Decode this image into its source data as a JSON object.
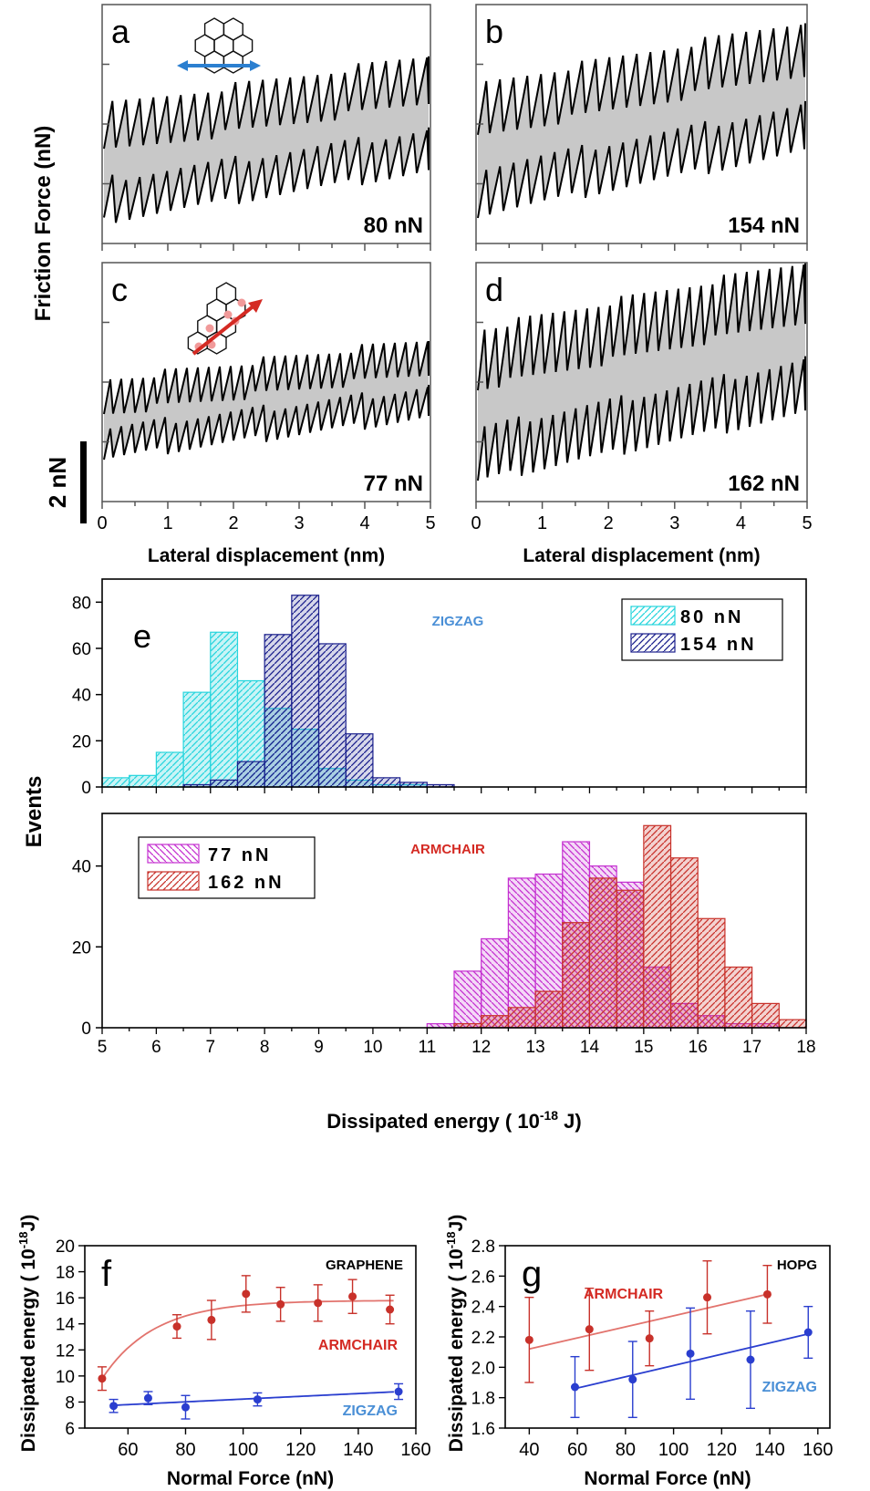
{
  "colors": {
    "black": "#000000",
    "trace_fill": "#c8c8c8",
    "cyan": "#27d5dd",
    "navy": "#1a1f8c",
    "magenta": "#c42fd0",
    "red": "#c8312a",
    "blue_fit": "#2a3ecf",
    "zigzag_text": "#4a8fd6",
    "armchair_text": "#d42a23"
  },
  "shared_labels": {
    "y_top": "Friction Force (nN)",
    "scale_bar": "2 nN",
    "x_lateral": "Lateral displacement (nm)",
    "events": "Events",
    "dissipated": "Dissipated energy ( 10",
    "dissipated_exp": "-18",
    "dissipated_unit": " J)",
    "normal_force": "Normal Force (nN)",
    "y_energy": "Dissipated energy ( 10",
    "y_energy_exp": "-18",
    "y_energy_unit": "J)"
  },
  "chart_data": [
    {
      "panel": "a",
      "type": "line",
      "load_label": "80 nN",
      "x_ticks": [],
      "xlim": [
        0,
        5
      ]
    },
    {
      "panel": "b",
      "type": "line",
      "load_label": "154 nN",
      "x_ticks": [],
      "xlim": [
        0,
        5
      ]
    },
    {
      "panel": "c",
      "type": "line",
      "load_label": "77 nN",
      "x_ticks": [
        "0",
        "1",
        "2",
        "3",
        "4",
        "5"
      ],
      "xlim": [
        0,
        5
      ],
      "xlabel": "Lateral displacement (nm)"
    },
    {
      "panel": "d",
      "type": "line",
      "load_label": "162 nN",
      "x_ticks": [
        "0",
        "1",
        "2",
        "3",
        "4",
        "5"
      ],
      "xlim": [
        0,
        5
      ],
      "xlabel": "Lateral displacement (nm)"
    },
    {
      "panel": "e",
      "type": "bar",
      "title_label": "ZIGZAG",
      "ylim": [
        0,
        90
      ],
      "y_ticks": [
        0,
        20,
        40,
        60,
        80
      ],
      "bin_width": 0.5,
      "series": [
        {
          "name": "80 nN",
          "bin_starts": [
            5,
            5.5,
            6,
            6.5,
            7,
            7.5,
            8,
            8.5,
            9,
            9.5,
            10,
            10.5
          ],
          "values": [
            4,
            5,
            15,
            41,
            67,
            46,
            34,
            25,
            8,
            3,
            1,
            1
          ]
        },
        {
          "name": "154 nN",
          "bin_starts": [
            6.5,
            7,
            7.5,
            8,
            8.5,
            9,
            9.5,
            10,
            10.5,
            11
          ],
          "values": [
            1,
            3,
            11,
            66,
            83,
            62,
            23,
            4,
            2,
            1
          ]
        }
      ]
    },
    {
      "panel": "e2",
      "type": "bar",
      "title_label": "ARMCHAIR",
      "ylim": [
        0,
        53
      ],
      "y_ticks": [
        0,
        20,
        40
      ],
      "xlim": [
        5,
        18
      ],
      "x_ticks": [
        5,
        6,
        7,
        8,
        9,
        10,
        11,
        12,
        13,
        14,
        15,
        16,
        17,
        18
      ],
      "bin_width": 0.5,
      "series": [
        {
          "name": "77 nN",
          "bin_starts": [
            11,
            11.5,
            12,
            12.5,
            13,
            13.5,
            14,
            14.5,
            15,
            15.5,
            16,
            16.5,
            17
          ],
          "values": [
            1,
            14,
            22,
            37,
            38,
            46,
            40,
            36,
            15,
            6,
            3,
            1,
            1
          ]
        },
        {
          "name": "162 nN",
          "bin_starts": [
            11.5,
            12,
            12.5,
            13,
            13.5,
            14,
            14.5,
            15,
            15.5,
            16,
            16.5,
            17,
            17.5
          ],
          "values": [
            1,
            3,
            5,
            9,
            26,
            37,
            34,
            50,
            42,
            27,
            15,
            6,
            2
          ]
        }
      ]
    },
    {
      "panel": "f",
      "type": "scatter",
      "corner_label": "GRAPHENE",
      "xlim": [
        45,
        160
      ],
      "ylim": [
        6,
        20
      ],
      "x_ticks": [
        60,
        80,
        100,
        120,
        140,
        160
      ],
      "y_ticks": [
        6,
        8,
        10,
        12,
        14,
        16,
        18,
        20
      ],
      "xlabel": "Normal Force (nN)",
      "series": [
        {
          "name": "ARMCHAIR",
          "x": [
            51,
            77,
            89,
            101,
            113,
            126,
            138,
            151
          ],
          "y": [
            9.8,
            13.8,
            14.3,
            16.3,
            15.5,
            15.6,
            16.1,
            15.1
          ],
          "err": [
            0.9,
            0.9,
            1.5,
            1.4,
            1.3,
            1.4,
            1.3,
            1.1
          ]
        },
        {
          "name": "ZIGZAG",
          "x": [
            55,
            67,
            80,
            105,
            154
          ],
          "y": [
            7.7,
            8.3,
            7.6,
            8.2,
            8.8
          ],
          "err": [
            0.5,
            0.5,
            0.9,
            0.5,
            0.6
          ]
        }
      ]
    },
    {
      "panel": "g",
      "type": "scatter",
      "corner_label": "HOPG",
      "xlim": [
        30,
        165
      ],
      "ylim": [
        1.6,
        2.8
      ],
      "x_ticks": [
        40,
        60,
        80,
        100,
        120,
        140,
        160
      ],
      "y_ticks": [
        1.6,
        1.8,
        2.0,
        2.2,
        2.4,
        2.6,
        2.8
      ],
      "xlabel": "Normal Force (nN)",
      "series": [
        {
          "name": "ARMCHAIR",
          "x": [
            40,
            65,
            90,
            114,
            139
          ],
          "y": [
            2.18,
            2.25,
            2.19,
            2.46,
            2.48
          ],
          "err": [
            0.28,
            0.27,
            0.18,
            0.24,
            0.19
          ]
        },
        {
          "name": "ZIGZAG",
          "x": [
            59,
            83,
            107,
            132,
            156
          ],
          "y": [
            1.87,
            1.92,
            2.09,
            2.05,
            2.23
          ],
          "err": [
            0.2,
            0.25,
            0.3,
            0.32,
            0.17
          ]
        }
      ]
    }
  ]
}
